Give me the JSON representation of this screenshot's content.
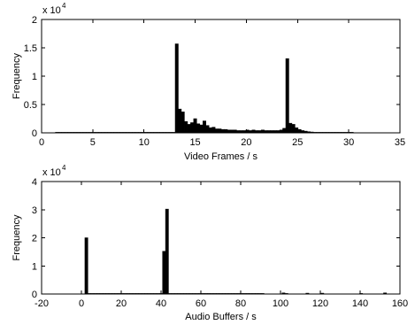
{
  "chart_data": [
    {
      "type": "bar",
      "xlabel": "Video Frames / s",
      "ylabel": "Frequency",
      "xlim": [
        0,
        35
      ],
      "ylim": [
        0,
        20000
      ],
      "xticks": [
        0,
        5,
        10,
        15,
        20,
        25,
        30,
        35
      ],
      "yticks": [
        0,
        5000,
        10000,
        15000,
        20000
      ],
      "ytick_labels": [
        "0",
        "0.5",
        "1",
        "1.5",
        "2"
      ],
      "y_exponent": {
        "base": "x 10",
        "power": "4"
      },
      "grid": false,
      "color": "#000000",
      "x": [
        1.5,
        1.8,
        2.1,
        2.4,
        2.7,
        3.0,
        3.3,
        3.6,
        3.9,
        4.2,
        4.5,
        4.8,
        5.1,
        5.4,
        5.7,
        6.0,
        6.3,
        6.6,
        6.9,
        7.2,
        7.5,
        7.8,
        8.1,
        8.4,
        8.7,
        9.0,
        9.3,
        9.6,
        9.9,
        10.2,
        10.5,
        10.8,
        11.1,
        11.4,
        11.7,
        12.0,
        12.3,
        12.6,
        12.9,
        13.2,
        13.5,
        13.8,
        14.1,
        14.4,
        14.7,
        15.0,
        15.3,
        15.6,
        15.9,
        16.2,
        16.5,
        16.8,
        17.1,
        17.4,
        17.7,
        18.0,
        18.3,
        18.6,
        18.9,
        19.2,
        19.5,
        19.8,
        20.1,
        20.4,
        20.7,
        21.0,
        21.3,
        21.6,
        21.9,
        22.2,
        22.5,
        22.8,
        23.1,
        23.4,
        23.7,
        24.0,
        24.3,
        24.6,
        24.9,
        25.2,
        25.5,
        25.8,
        26.1,
        26.4,
        26.7,
        27.0,
        27.3,
        27.6,
        27.9,
        28.2,
        28.5,
        28.8,
        29.1,
        29.4,
        29.7,
        30.0,
        30.3
      ],
      "values": [
        100,
        100,
        100,
        100,
        100,
        100,
        100,
        100,
        100,
        100,
        100,
        100,
        100,
        100,
        100,
        100,
        100,
        100,
        100,
        100,
        100,
        100,
        100,
        100,
        100,
        100,
        100,
        100,
        100,
        100,
        100,
        100,
        100,
        100,
        100,
        100,
        100,
        100,
        100,
        15700,
        4200,
        3700,
        2000,
        1500,
        1800,
        2500,
        1600,
        1400,
        2100,
        1300,
        900,
        1000,
        700,
        700,
        600,
        600,
        500,
        500,
        500,
        400,
        400,
        400,
        500,
        400,
        500,
        400,
        400,
        500,
        400,
        400,
        400,
        400,
        400,
        500,
        800,
        13100,
        1700,
        1500,
        900,
        600,
        400,
        300,
        200,
        150,
        100,
        100,
        100,
        100,
        100,
        100,
        100,
        100,
        100,
        100,
        100,
        100,
        100
      ]
    },
    {
      "type": "bar",
      "xlabel": "Audio Buffers / s",
      "ylabel": "Frequency",
      "xlim": [
        -20,
        160
      ],
      "ylim": [
        0,
        40000
      ],
      "xticks": [
        -20,
        0,
        20,
        40,
        60,
        80,
        100,
        120,
        140,
        160
      ],
      "yticks": [
        0,
        10000,
        20000,
        30000,
        40000
      ],
      "ytick_labels": [
        "0",
        "1",
        "2",
        "3",
        "4"
      ],
      "y_exponent": {
        "base": "x 10",
        "power": "4"
      },
      "grid": false,
      "color": "#000000",
      "x": [
        2.5,
        4.0,
        5.5,
        7.0,
        8.5,
        10.0,
        11.5,
        13.0,
        14.5,
        16.0,
        17.5,
        19.0,
        20.5,
        22.0,
        23.5,
        25.0,
        26.5,
        28.0,
        29.5,
        31.0,
        32.5,
        34.0,
        35.5,
        37.0,
        38.5,
        40.0,
        41.5,
        43.0,
        44.5,
        46.0,
        47.5,
        49.0,
        50.5,
        52.0,
        53.5,
        55.0,
        56.5,
        58.0,
        59.5,
        61.0,
        62.5,
        64.0,
        65.5,
        67.0,
        68.5,
        70.0,
        71.5,
        73.0,
        74.5,
        76.0,
        77.5,
        79.0,
        80.5,
        82.0,
        83.5,
        85.0,
        86.5,
        88.0,
        89.5,
        91.0,
        101.5,
        103.0,
        113.5,
        121.0,
        140.5,
        152.5
      ],
      "values": [
        20000,
        200,
        200,
        200,
        200,
        200,
        200,
        200,
        200,
        200,
        200,
        200,
        200,
        200,
        200,
        200,
        200,
        200,
        200,
        200,
        200,
        200,
        200,
        200,
        200,
        200,
        15200,
        30200,
        200,
        200,
        200,
        200,
        200,
        200,
        200,
        200,
        200,
        200,
        200,
        200,
        200,
        200,
        200,
        200,
        200,
        200,
        200,
        200,
        200,
        200,
        200,
        200,
        200,
        200,
        200,
        200,
        200,
        200,
        200,
        200,
        400,
        200,
        300,
        300,
        200,
        400
      ]
    }
  ]
}
